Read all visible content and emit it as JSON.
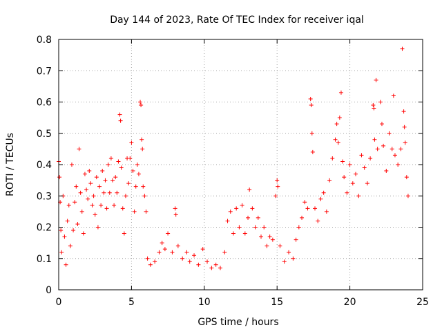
{
  "chart_data": {
    "type": "scatter",
    "title": "Day 144 of 2023, Rate Of TEC Index for receiver iqal",
    "xlabel": "GPS time / hours",
    "ylabel": "ROTI / TECUs",
    "xlim": [
      0,
      25
    ],
    "ylim": [
      0,
      0.8
    ],
    "xticks": [
      0,
      5,
      10,
      15,
      20,
      25
    ],
    "yticks": [
      0,
      0.1,
      0.2,
      0.3,
      0.4,
      0.5,
      0.6,
      0.7,
      0.8
    ],
    "xtick_labels": [
      "0",
      "5",
      "10",
      "15",
      "20",
      "25"
    ],
    "ytick_labels": [
      "0",
      "0.1",
      "0.2",
      "0.3",
      "0.4",
      "0.5",
      "0.6",
      "0.7",
      "0.8"
    ],
    "grid": true,
    "marker": "+",
    "color": "#ff0000",
    "series": [
      {
        "values": [
          [
            0.0,
            0.41
          ],
          [
            0.05,
            0.36
          ],
          [
            0.1,
            0.28
          ],
          [
            0.15,
            0.19
          ],
          [
            0.2,
            0.12
          ],
          [
            0.3,
            0.3
          ],
          [
            0.4,
            0.17
          ],
          [
            0.5,
            0.08
          ],
          [
            0.6,
            0.22
          ],
          [
            0.7,
            0.27
          ],
          [
            0.8,
            0.14
          ],
          [
            0.9,
            0.4
          ],
          [
            1.0,
            0.19
          ],
          [
            1.1,
            0.28
          ],
          [
            1.2,
            0.33
          ],
          [
            1.3,
            0.21
          ],
          [
            1.4,
            0.45
          ],
          [
            1.5,
            0.31
          ],
          [
            1.6,
            0.25
          ],
          [
            1.7,
            0.18
          ],
          [
            1.8,
            0.37
          ],
          [
            1.9,
            0.32
          ],
          [
            2.0,
            0.29
          ],
          [
            2.1,
            0.38
          ],
          [
            2.2,
            0.34
          ],
          [
            2.3,
            0.27
          ],
          [
            2.4,
            0.3
          ],
          [
            2.5,
            0.24
          ],
          [
            2.6,
            0.36
          ],
          [
            2.7,
            0.2
          ],
          [
            2.8,
            0.33
          ],
          [
            2.9,
            0.27
          ],
          [
            3.0,
            0.38
          ],
          [
            3.1,
            0.31
          ],
          [
            3.2,
            0.35
          ],
          [
            3.3,
            0.26
          ],
          [
            3.4,
            0.4
          ],
          [
            3.5,
            0.31
          ],
          [
            3.6,
            0.42
          ],
          [
            3.7,
            0.35
          ],
          [
            3.8,
            0.27
          ],
          [
            3.9,
            0.36
          ],
          [
            4.0,
            0.31
          ],
          [
            4.1,
            0.41
          ],
          [
            4.2,
            0.56
          ],
          [
            4.25,
            0.54
          ],
          [
            4.3,
            0.39
          ],
          [
            4.4,
            0.26
          ],
          [
            4.5,
            0.18
          ],
          [
            4.6,
            0.3
          ],
          [
            4.7,
            0.42
          ],
          [
            4.8,
            0.34
          ],
          [
            4.9,
            0.42
          ],
          [
            5.0,
            0.47
          ],
          [
            5.1,
            0.38
          ],
          [
            5.2,
            0.25
          ],
          [
            5.3,
            0.33
          ],
          [
            5.4,
            0.4
          ],
          [
            5.5,
            0.37
          ],
          [
            5.6,
            0.6
          ],
          [
            5.65,
            0.59
          ],
          [
            5.7,
            0.48
          ],
          [
            5.75,
            0.45
          ],
          [
            5.8,
            0.33
          ],
          [
            5.9,
            0.3
          ],
          [
            6.0,
            0.25
          ],
          [
            6.1,
            0.1
          ],
          [
            6.3,
            0.08
          ],
          [
            6.6,
            0.09
          ],
          [
            6.9,
            0.12
          ],
          [
            7.1,
            0.15
          ],
          [
            7.3,
            0.13
          ],
          [
            7.5,
            0.18
          ],
          [
            7.8,
            0.12
          ],
          [
            8.0,
            0.26
          ],
          [
            8.05,
            0.24
          ],
          [
            8.2,
            0.14
          ],
          [
            8.5,
            0.1
          ],
          [
            8.8,
            0.12
          ],
          [
            9.0,
            0.09
          ],
          [
            9.3,
            0.11
          ],
          [
            9.6,
            0.08
          ],
          [
            9.9,
            0.13
          ],
          [
            10.2,
            0.09
          ],
          [
            10.5,
            0.07
          ],
          [
            10.8,
            0.08
          ],
          [
            11.1,
            0.07
          ],
          [
            11.4,
            0.12
          ],
          [
            11.6,
            0.22
          ],
          [
            11.8,
            0.25
          ],
          [
            12.0,
            0.18
          ],
          [
            12.2,
            0.26
          ],
          [
            12.4,
            0.2
          ],
          [
            12.6,
            0.27
          ],
          [
            12.8,
            0.18
          ],
          [
            13.0,
            0.23
          ],
          [
            13.1,
            0.32
          ],
          [
            13.3,
            0.26
          ],
          [
            13.5,
            0.2
          ],
          [
            13.7,
            0.23
          ],
          [
            13.9,
            0.17
          ],
          [
            14.1,
            0.2
          ],
          [
            14.3,
            0.14
          ],
          [
            14.5,
            0.17
          ],
          [
            14.7,
            0.16
          ],
          [
            14.9,
            0.3
          ],
          [
            15.0,
            0.35
          ],
          [
            15.05,
            0.33
          ],
          [
            15.2,
            0.14
          ],
          [
            15.5,
            0.09
          ],
          [
            15.8,
            0.12
          ],
          [
            16.1,
            0.1
          ],
          [
            16.3,
            0.16
          ],
          [
            16.5,
            0.2
          ],
          [
            16.7,
            0.23
          ],
          [
            16.9,
            0.28
          ],
          [
            17.1,
            0.26
          ],
          [
            17.3,
            0.61
          ],
          [
            17.35,
            0.59
          ],
          [
            17.4,
            0.5
          ],
          [
            17.45,
            0.44
          ],
          [
            17.6,
            0.26
          ],
          [
            17.8,
            0.22
          ],
          [
            18.0,
            0.29
          ],
          [
            18.2,
            0.31
          ],
          [
            18.4,
            0.25
          ],
          [
            18.6,
            0.35
          ],
          [
            18.8,
            0.42
          ],
          [
            19.0,
            0.48
          ],
          [
            19.1,
            0.53
          ],
          [
            19.2,
            0.47
          ],
          [
            19.3,
            0.55
          ],
          [
            19.4,
            0.63
          ],
          [
            19.5,
            0.41
          ],
          [
            19.6,
            0.36
          ],
          [
            19.8,
            0.31
          ],
          [
            20.0,
            0.4
          ],
          [
            20.2,
            0.34
          ],
          [
            20.4,
            0.37
          ],
          [
            20.6,
            0.3
          ],
          [
            20.8,
            0.43
          ],
          [
            21.0,
            0.39
          ],
          [
            21.2,
            0.34
          ],
          [
            21.4,
            0.42
          ],
          [
            21.6,
            0.59
          ],
          [
            21.65,
            0.58
          ],
          [
            21.7,
            0.48
          ],
          [
            21.8,
            0.67
          ],
          [
            21.9,
            0.45
          ],
          [
            22.1,
            0.6
          ],
          [
            22.2,
            0.53
          ],
          [
            22.3,
            0.46
          ],
          [
            22.5,
            0.38
          ],
          [
            22.7,
            0.5
          ],
          [
            22.9,
            0.45
          ],
          [
            23.0,
            0.62
          ],
          [
            23.1,
            0.43
          ],
          [
            23.3,
            0.4
          ],
          [
            23.5,
            0.45
          ],
          [
            23.6,
            0.77
          ],
          [
            23.7,
            0.57
          ],
          [
            23.75,
            0.52
          ],
          [
            23.8,
            0.47
          ],
          [
            23.9,
            0.36
          ],
          [
            24.0,
            0.3
          ]
        ]
      }
    ]
  }
}
